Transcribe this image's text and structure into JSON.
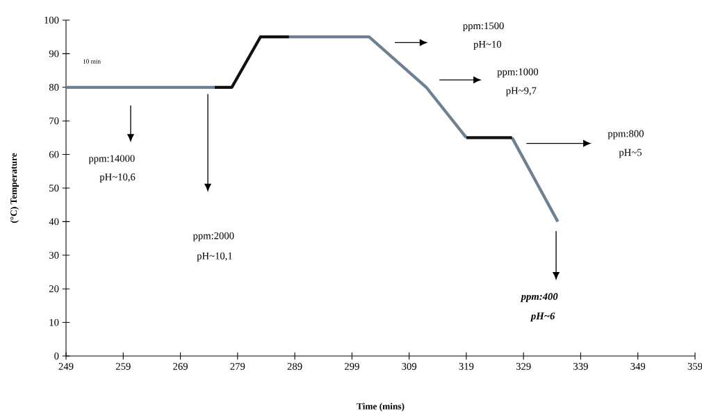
{
  "chart_data": {
    "type": "line",
    "xlabel": "Time (mins)",
    "ylabel": "(°C) Temperature",
    "xlim": [
      249,
      359
    ],
    "xticks": [
      249,
      259,
      269,
      279,
      289,
      299,
      309,
      319,
      329,
      339,
      349,
      359
    ],
    "ylim": [
      0,
      100
    ],
    "yticks": [
      0,
      10,
      20,
      30,
      40,
      50,
      60,
      70,
      80,
      90,
      100
    ],
    "grid": false,
    "marker": "none",
    "line_style": "solid",
    "series": [
      {
        "color": "#6f8190",
        "x": [
          249,
          275,
          276,
          288,
          302,
          312,
          319,
          323,
          327,
          335
        ],
        "values": [
          80,
          80,
          null,
          95,
          95,
          80,
          65,
          null,
          65,
          40
        ]
      },
      {
        "color": "#111111",
        "x": [
          275,
          278,
          283,
          288,
          300,
          319,
          327
        ],
        "values": [
          80,
          80,
          95,
          95,
          null,
          65,
          65
        ]
      }
    ],
    "annotations": [
      "10 min",
      "ppm:14000",
      "pH~10,6",
      "ppm:2000",
      "pH~10,1",
      "ppm:1500",
      "pH~10",
      "ppm:1000",
      "pH~9,7",
      "ppm:800",
      "pH~5",
      "ppm:400",
      "pH~6"
    ]
  }
}
